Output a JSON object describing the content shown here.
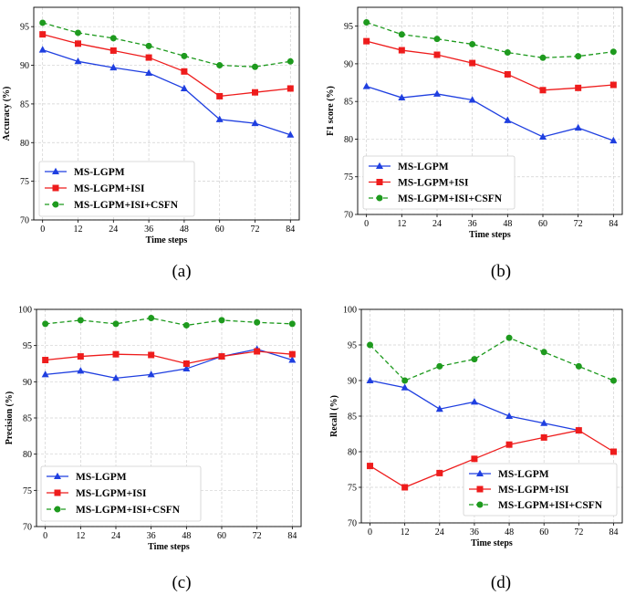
{
  "figure": {
    "captions": [
      "(a)",
      "(b)",
      "(c)",
      "(d)"
    ]
  },
  "colors": {
    "ms_lgpm": "#1f3fe0",
    "isi": "#ee1c1c",
    "csfn": "#1e9a1e"
  },
  "chart_data": [
    {
      "type": "line",
      "title": "",
      "xlabel": "Time steps",
      "ylabel": "Accuracy (%)",
      "x": [
        0,
        12,
        24,
        36,
        48,
        60,
        72,
        84
      ],
      "ylim": [
        70,
        97.5
      ],
      "yticks": [
        70,
        75,
        80,
        85,
        90,
        95
      ],
      "legend_position": "bottom-left",
      "series": [
        {
          "name": "MS-LGPM",
          "marker": "triangle",
          "dash": "solid",
          "color": "#1f3fe0",
          "values": [
            92,
            90.5,
            89.7,
            89,
            87,
            83,
            82.5,
            81
          ]
        },
        {
          "name": "MS-LGPM+ISI",
          "marker": "square",
          "dash": "solid",
          "color": "#ee1c1c",
          "values": [
            94,
            92.8,
            91.9,
            91,
            89.2,
            86,
            86.5,
            87
          ]
        },
        {
          "name": "MS-LGPM+ISI+CSFN",
          "marker": "circle",
          "dash": "dashed",
          "color": "#1e9a1e",
          "values": [
            95.5,
            94.2,
            93.5,
            92.5,
            91.2,
            90,
            89.8,
            90.5
          ]
        }
      ]
    },
    {
      "type": "line",
      "title": "",
      "xlabel": "Time steps",
      "ylabel": "F1 score (%)",
      "x": [
        0,
        12,
        24,
        36,
        48,
        60,
        72,
        84
      ],
      "ylim": [
        70,
        97.5
      ],
      "yticks": [
        70,
        75,
        80,
        85,
        90,
        95
      ],
      "legend_position": "bottom-left",
      "series": [
        {
          "name": "MS-LGPM",
          "marker": "triangle",
          "dash": "solid",
          "color": "#1f3fe0",
          "values": [
            87,
            85.5,
            86,
            85.2,
            82.5,
            80.3,
            81.5,
            79.8
          ]
        },
        {
          "name": "MS-LGPM+ISI",
          "marker": "square",
          "dash": "solid",
          "color": "#ee1c1c",
          "values": [
            93,
            91.8,
            91.2,
            90.1,
            88.6,
            86.5,
            86.8,
            87.2
          ]
        },
        {
          "name": "MS-LGPM+ISI+CSFN",
          "marker": "circle",
          "dash": "dashed",
          "color": "#1e9a1e",
          "values": [
            95.5,
            93.9,
            93.3,
            92.6,
            91.5,
            90.8,
            91,
            91.6
          ]
        }
      ]
    },
    {
      "type": "line",
      "title": "",
      "xlabel": "Time steps",
      "ylabel": "Precision (%)",
      "x": [
        0,
        12,
        24,
        36,
        48,
        60,
        72,
        84
      ],
      "ylim": [
        70,
        100
      ],
      "yticks": [
        70,
        75,
        80,
        85,
        90,
        95,
        100
      ],
      "legend_position": "bottom-left",
      "series": [
        {
          "name": "MS-LGPM",
          "marker": "triangle",
          "dash": "solid",
          "color": "#1f3fe0",
          "values": [
            91,
            91.5,
            90.5,
            91,
            91.8,
            93.5,
            94.5,
            93
          ]
        },
        {
          "name": "MS-LGPM+ISI",
          "marker": "square",
          "dash": "solid",
          "color": "#ee1c1c",
          "values": [
            93,
            93.5,
            93.8,
            93.7,
            92.5,
            93.5,
            94.2,
            93.8
          ]
        },
        {
          "name": "MS-LGPM+ISI+CSFN",
          "marker": "circle",
          "dash": "dashed",
          "color": "#1e9a1e",
          "values": [
            98,
            98.5,
            98,
            98.8,
            97.8,
            98.5,
            98.2,
            98
          ]
        }
      ]
    },
    {
      "type": "line",
      "title": "",
      "xlabel": "Time steps",
      "ylabel": "Recall (%)",
      "x": [
        0,
        12,
        24,
        36,
        48,
        60,
        72,
        84
      ],
      "ylim": [
        70,
        100
      ],
      "yticks": [
        70,
        75,
        80,
        85,
        90,
        95,
        100
      ],
      "legend_position": "bottom-right",
      "series": [
        {
          "name": "MS-LGPM",
          "marker": "triangle",
          "dash": "solid",
          "color": "#1f3fe0",
          "values": [
            90,
            89,
            86,
            87,
            85,
            84,
            83,
            null
          ]
        },
        {
          "name": "MS-LGPM+ISI",
          "marker": "square",
          "dash": "solid",
          "color": "#ee1c1c",
          "values": [
            78,
            75,
            77,
            79,
            81,
            82,
            83,
            80
          ]
        },
        {
          "name": "MS-LGPM+ISI+CSFN",
          "marker": "circle",
          "dash": "dashed",
          "color": "#1e9a1e",
          "values": [
            95,
            90,
            92,
            93,
            96,
            94,
            92,
            90
          ]
        }
      ]
    }
  ]
}
